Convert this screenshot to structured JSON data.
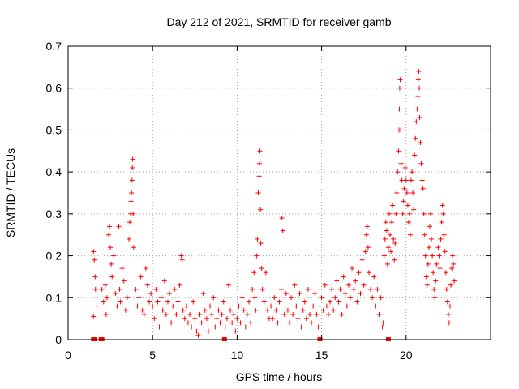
{
  "chart_data": {
    "type": "scatter",
    "title": "Day 212 of 2021, SRMTID for receiver gamb",
    "xlabel": "GPS time / hours",
    "ylabel": "SRMTID / TECUs",
    "xlim": [
      0,
      25
    ],
    "ylim": [
      0,
      0.7
    ],
    "xticks": [
      0,
      5,
      10,
      15,
      20
    ],
    "yticks": [
      0,
      0.1,
      0.2,
      0.3,
      0.4,
      0.5,
      0.6,
      0.7
    ],
    "xtick_labels": [
      "0",
      "5",
      "10",
      "15",
      "20"
    ],
    "ytick_labels": [
      "0",
      "0.1",
      "0.2",
      "0.3",
      "0.4",
      "0.5",
      "0.6",
      "0.7"
    ],
    "grid": true,
    "marker": "plus",
    "color": "#ff0000",
    "series": [
      {
        "name": "SRMTID",
        "points": [
          [
            1.5,
            0.21
          ],
          [
            1.55,
            0.19
          ],
          [
            1.6,
            0.15
          ],
          [
            1.62,
            0.12
          ],
          [
            1.7,
            0.08
          ],
          [
            1.5,
            0.055
          ],
          [
            2.0,
            0.12
          ],
          [
            2.1,
            0.09
          ],
          [
            2.2,
            0.13
          ],
          [
            2.25,
            0.06
          ],
          [
            2.3,
            0.1
          ],
          [
            2.4,
            0.25
          ],
          [
            2.45,
            0.27
          ],
          [
            2.5,
            0.22
          ],
          [
            2.55,
            0.18
          ],
          [
            2.6,
            0.15
          ],
          [
            2.7,
            0.2
          ],
          [
            2.8,
            0.11
          ],
          [
            2.9,
            0.08
          ],
          [
            3.0,
            0.27
          ],
          [
            3.05,
            0.12
          ],
          [
            3.1,
            0.09
          ],
          [
            3.2,
            0.17
          ],
          [
            3.3,
            0.14
          ],
          [
            3.4,
            0.07
          ],
          [
            3.5,
            0.1
          ],
          [
            3.6,
            0.24
          ],
          [
            3.65,
            0.28
          ],
          [
            3.7,
            0.3
          ],
          [
            3.72,
            0.33
          ],
          [
            3.75,
            0.35
          ],
          [
            3.78,
            0.38
          ],
          [
            3.8,
            0.41
          ],
          [
            3.82,
            0.43
          ],
          [
            3.85,
            0.3
          ],
          [
            3.88,
            0.22
          ],
          [
            4.0,
            0.12
          ],
          [
            4.1,
            0.08
          ],
          [
            4.2,
            0.1
          ],
          [
            4.3,
            0.15
          ],
          [
            4.4,
            0.07
          ],
          [
            4.5,
            0.06
          ],
          [
            4.6,
            0.17
          ],
          [
            4.7,
            0.13
          ],
          [
            4.8,
            0.09
          ],
          [
            4.9,
            0.11
          ],
          [
            5.0,
            0.08
          ],
          [
            5.1,
            0.05
          ],
          [
            5.2,
            0.12
          ],
          [
            5.3,
            0.09
          ],
          [
            5.4,
            0.03
          ],
          [
            5.5,
            0.1
          ],
          [
            5.6,
            0.07
          ],
          [
            5.7,
            0.14
          ],
          [
            5.8,
            0.06
          ],
          [
            5.9,
            0.09
          ],
          [
            6.0,
            0.11
          ],
          [
            6.1,
            0.04
          ],
          [
            6.2,
            0.08
          ],
          [
            6.3,
            0.12
          ],
          [
            6.4,
            0.06
          ],
          [
            6.5,
            0.09
          ],
          [
            6.6,
            0.13
          ],
          [
            6.7,
            0.2
          ],
          [
            6.75,
            0.19
          ],
          [
            6.8,
            0.07
          ],
          [
            6.9,
            0.05
          ],
          [
            7.0,
            0.08
          ],
          [
            7.1,
            0.04
          ],
          [
            7.2,
            0.06
          ],
          [
            7.3,
            0.03
          ],
          [
            7.4,
            0.09
          ],
          [
            7.5,
            0.05
          ],
          [
            7.6,
            0.02
          ],
          [
            7.7,
            0.01
          ],
          [
            7.8,
            0.06
          ],
          [
            7.9,
            0.04
          ],
          [
            8.0,
            0.11
          ],
          [
            8.1,
            0.07
          ],
          [
            8.2,
            0.05
          ],
          [
            8.3,
            0.02
          ],
          [
            8.4,
            0.08
          ],
          [
            8.5,
            0.06
          ],
          [
            8.6,
            0.1
          ],
          [
            8.7,
            0.03
          ],
          [
            8.8,
            0.05
          ],
          [
            8.9,
            0.07
          ],
          [
            9.0,
            0.04
          ],
          [
            9.1,
            0.06
          ],
          [
            9.2,
            0.09
          ],
          [
            9.3,
            0.03
          ],
          [
            9.4,
            0.05
          ],
          [
            9.5,
            0.13
          ],
          [
            9.6,
            0.07
          ],
          [
            9.7,
            0.04
          ],
          [
            9.8,
            0.06
          ],
          [
            9.9,
            0.02
          ],
          [
            10.0,
            0.05
          ],
          [
            10.1,
            0.08
          ],
          [
            10.2,
            0.04
          ],
          [
            10.3,
            0.1
          ],
          [
            10.4,
            0.07
          ],
          [
            10.5,
            0.03
          ],
          [
            10.6,
            0.06
          ],
          [
            10.7,
            0.09
          ],
          [
            10.8,
            0.04
          ],
          [
            10.9,
            0.12
          ],
          [
            11.0,
            0.16
          ],
          [
            11.05,
            0.1
          ],
          [
            11.1,
            0.07
          ],
          [
            11.15,
            0.2
          ],
          [
            11.2,
            0.24
          ],
          [
            11.25,
            0.35
          ],
          [
            11.3,
            0.39
          ],
          [
            11.32,
            0.42
          ],
          [
            11.35,
            0.45
          ],
          [
            11.38,
            0.31
          ],
          [
            11.4,
            0.23
          ],
          [
            11.45,
            0.17
          ],
          [
            11.5,
            0.12
          ],
          [
            11.6,
            0.09
          ],
          [
            11.7,
            0.16
          ],
          [
            11.8,
            0.07
          ],
          [
            11.9,
            0.05
          ],
          [
            12.0,
            0.08
          ],
          [
            12.1,
            0.05
          ],
          [
            12.2,
            0.1
          ],
          [
            12.3,
            0.07
          ],
          [
            12.4,
            0.04
          ],
          [
            12.5,
            0.09
          ],
          [
            12.6,
            0.12
          ],
          [
            12.65,
            0.29
          ],
          [
            12.7,
            0.26
          ],
          [
            12.8,
            0.06
          ],
          [
            12.9,
            0.11
          ],
          [
            13.0,
            0.07
          ],
          [
            13.1,
            0.04
          ],
          [
            13.2,
            0.1
          ],
          [
            13.3,
            0.06
          ],
          [
            13.4,
            0.13
          ],
          [
            13.5,
            0.08
          ],
          [
            13.6,
            0.05
          ],
          [
            13.7,
            0.11
          ],
          [
            13.8,
            0.03
          ],
          [
            13.9,
            0.07
          ],
          [
            14.0,
            0.09
          ],
          [
            14.1,
            0.05
          ],
          [
            14.2,
            0.12
          ],
          [
            14.3,
            0.06
          ],
          [
            14.4,
            0.04
          ],
          [
            14.5,
            0.08
          ],
          [
            14.6,
            0.11
          ],
          [
            14.7,
            0.06
          ],
          [
            14.8,
            0.03
          ],
          [
            14.9,
            0.08
          ],
          [
            15.0,
            0.1
          ],
          [
            15.1,
            0.07
          ],
          [
            15.2,
            0.13
          ],
          [
            15.3,
            0.08
          ],
          [
            15.4,
            0.06
          ],
          [
            15.5,
            0.09
          ],
          [
            15.6,
            0.12
          ],
          [
            15.7,
            0.07
          ],
          [
            15.8,
            0.1
          ],
          [
            15.9,
            0.14
          ],
          [
            16.0,
            0.09
          ],
          [
            16.1,
            0.12
          ],
          [
            16.2,
            0.06
          ],
          [
            16.3,
            0.15
          ],
          [
            16.4,
            0.11
          ],
          [
            16.5,
            0.08
          ],
          [
            16.6,
            0.13
          ],
          [
            16.7,
            0.1
          ],
          [
            16.8,
            0.17
          ],
          [
            16.9,
            0.12
          ],
          [
            17.0,
            0.14
          ],
          [
            17.1,
            0.09
          ],
          [
            17.2,
            0.16
          ],
          [
            17.3,
            0.11
          ],
          [
            17.4,
            0.19
          ],
          [
            17.5,
            0.13
          ],
          [
            17.6,
            0.21
          ],
          [
            17.65,
            0.25
          ],
          [
            17.7,
            0.27
          ],
          [
            17.75,
            0.22
          ],
          [
            17.8,
            0.16
          ],
          [
            17.9,
            0.12
          ],
          [
            18.0,
            0.1
          ],
          [
            18.1,
            0.15
          ],
          [
            18.2,
            0.08
          ],
          [
            18.3,
            0.12
          ],
          [
            18.4,
            0.06
          ],
          [
            18.5,
            0.1
          ],
          [
            18.6,
            0.03
          ],
          [
            18.65,
            0.04
          ],
          [
            18.7,
            0.2
          ],
          [
            18.75,
            0.24
          ],
          [
            18.8,
            0.28
          ],
          [
            18.85,
            0.26
          ],
          [
            18.9,
            0.18
          ],
          [
            18.95,
            0.22
          ],
          [
            19.0,
            0.3
          ],
          [
            19.05,
            0.25
          ],
          [
            19.1,
            0.21
          ],
          [
            19.15,
            0.28
          ],
          [
            19.2,
            0.32
          ],
          [
            19.25,
            0.24
          ],
          [
            19.3,
            0.19
          ],
          [
            19.35,
            0.23
          ],
          [
            19.4,
            0.3
          ],
          [
            19.45,
            0.35
          ],
          [
            19.5,
            0.4
          ],
          [
            19.55,
            0.45
          ],
          [
            19.58,
            0.5
          ],
          [
            19.6,
            0.55
          ],
          [
            19.62,
            0.6
          ],
          [
            19.65,
            0.62
          ],
          [
            19.68,
            0.5
          ],
          [
            19.7,
            0.42
          ],
          [
            19.75,
            0.38
          ],
          [
            19.8,
            0.3
          ],
          [
            19.85,
            0.33
          ],
          [
            19.9,
            0.36
          ],
          [
            19.95,
            0.41
          ],
          [
            20.0,
            0.38
          ],
          [
            20.05,
            0.35
          ],
          [
            20.1,
            0.32
          ],
          [
            20.15,
            0.28
          ],
          [
            20.2,
            0.3
          ],
          [
            20.25,
            0.25
          ],
          [
            20.3,
            0.38
          ],
          [
            20.35,
            0.4
          ],
          [
            20.4,
            0.35
          ],
          [
            20.45,
            0.31
          ],
          [
            20.5,
            0.44
          ],
          [
            20.55,
            0.48
          ],
          [
            20.6,
            0.52
          ],
          [
            20.65,
            0.55
          ],
          [
            20.7,
            0.58
          ],
          [
            20.72,
            0.62
          ],
          [
            20.75,
            0.64
          ],
          [
            20.78,
            0.6
          ],
          [
            20.8,
            0.53
          ],
          [
            20.85,
            0.47
          ],
          [
            20.9,
            0.42
          ],
          [
            20.95,
            0.38
          ],
          [
            21.0,
            0.36
          ],
          [
            21.05,
            0.3
          ],
          [
            21.1,
            0.25
          ],
          [
            21.15,
            0.2
          ],
          [
            21.2,
            0.15
          ],
          [
            21.25,
            0.13
          ],
          [
            21.3,
            0.18
          ],
          [
            21.35,
            0.22
          ],
          [
            21.4,
            0.27
          ],
          [
            21.45,
            0.3
          ],
          [
            21.5,
            0.24
          ],
          [
            21.55,
            0.2
          ],
          [
            21.6,
            0.16
          ],
          [
            21.65,
            0.12
          ],
          [
            21.7,
            0.1
          ],
          [
            21.75,
            0.14
          ],
          [
            21.8,
            0.18
          ],
          [
            21.9,
            0.22
          ],
          [
            21.95,
            0.2
          ],
          [
            22.0,
            0.17
          ],
          [
            22.05,
            0.24
          ],
          [
            22.1,
            0.28
          ],
          [
            22.15,
            0.32
          ],
          [
            22.2,
            0.3
          ],
          [
            22.25,
            0.25
          ],
          [
            22.3,
            0.21
          ],
          [
            22.35,
            0.16
          ],
          [
            22.4,
            0.12
          ],
          [
            22.45,
            0.09
          ],
          [
            22.5,
            0.06
          ],
          [
            22.55,
            0.04
          ],
          [
            22.6,
            0.08
          ],
          [
            22.65,
            0.13
          ],
          [
            22.7,
            0.17
          ],
          [
            22.75,
            0.2
          ],
          [
            22.8,
            0.18
          ],
          [
            22.85,
            0.14
          ]
        ]
      }
    ],
    "zero_markers": [
      1.5,
      1.55,
      1.95,
      2.0,
      9.25,
      14.9,
      18.95
    ]
  }
}
